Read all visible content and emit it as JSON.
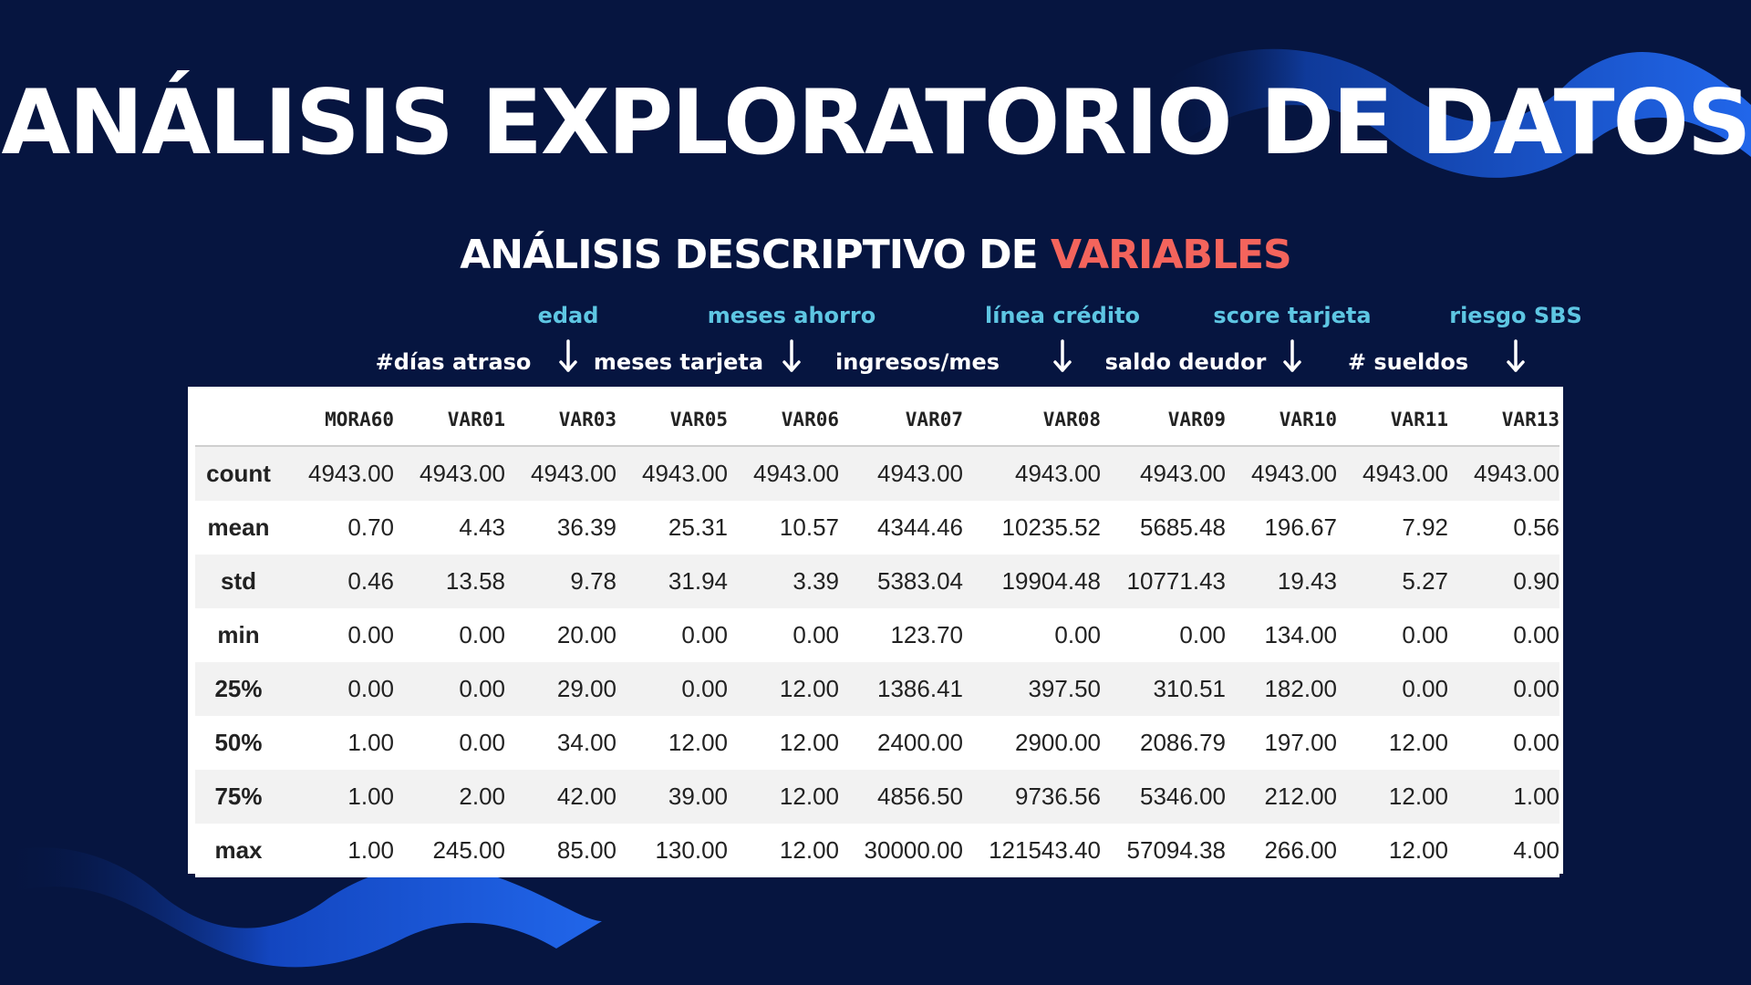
{
  "slide": {
    "title": "ANÁLISIS EXPLORATORIO DE DATOS",
    "subtitle": {
      "prefix": "ANÁLISIS DESCRIPTIVO DE ",
      "highlight": "VARIABLES"
    },
    "colors": {
      "background": "#061540",
      "wave": "#1f5fe0",
      "highlight": "#f4645c",
      "annotation_top": "#5ec6e3",
      "annotation_bottom": "#ffffff"
    }
  },
  "annotations": {
    "var01": "#días atraso",
    "var03": "edad",
    "var05": "meses tarjeta",
    "var06": "meses ahorro",
    "var07": "ingresos/mes",
    "var08": "línea crédito",
    "var09": "saldo deudor",
    "var10": "score tarjeta",
    "var11": "# sueldos",
    "var13": "riesgo SBS"
  },
  "table": {
    "columns": [
      "",
      "MORA60",
      "VAR01",
      "VAR03",
      "VAR05",
      "VAR06",
      "VAR07",
      "VAR08",
      "VAR09",
      "VAR10",
      "VAR11",
      "VAR13"
    ],
    "rows": [
      {
        "label": "count",
        "values": [
          "4943.00",
          "4943.00",
          "4943.00",
          "4943.00",
          "4943.00",
          "4943.00",
          "4943.00",
          "4943.00",
          "4943.00",
          "4943.00",
          "4943.00"
        ]
      },
      {
        "label": "mean",
        "values": [
          "0.70",
          "4.43",
          "36.39",
          "25.31",
          "10.57",
          "4344.46",
          "10235.52",
          "5685.48",
          "196.67",
          "7.92",
          "0.56"
        ]
      },
      {
        "label": "std",
        "values": [
          "0.46",
          "13.58",
          "9.78",
          "31.94",
          "3.39",
          "5383.04",
          "19904.48",
          "10771.43",
          "19.43",
          "5.27",
          "0.90"
        ]
      },
      {
        "label": "min",
        "values": [
          "0.00",
          "0.00",
          "20.00",
          "0.00",
          "0.00",
          "123.70",
          "0.00",
          "0.00",
          "134.00",
          "0.00",
          "0.00"
        ]
      },
      {
        "label": "25%",
        "values": [
          "0.00",
          "0.00",
          "29.00",
          "0.00",
          "12.00",
          "1386.41",
          "397.50",
          "310.51",
          "182.00",
          "0.00",
          "0.00"
        ]
      },
      {
        "label": "50%",
        "values": [
          "1.00",
          "0.00",
          "34.00",
          "12.00",
          "12.00",
          "2400.00",
          "2900.00",
          "2086.79",
          "197.00",
          "12.00",
          "0.00"
        ]
      },
      {
        "label": "75%",
        "values": [
          "1.00",
          "2.00",
          "42.00",
          "39.00",
          "12.00",
          "4856.50",
          "9736.56",
          "5346.00",
          "212.00",
          "12.00",
          "1.00"
        ]
      },
      {
        "label": "max",
        "values": [
          "1.00",
          "245.00",
          "85.00",
          "130.00",
          "12.00",
          "30000.00",
          "121543.40",
          "57094.38",
          "266.00",
          "12.00",
          "4.00"
        ]
      }
    ]
  },
  "icons": {
    "arrow": "down-arrow-icon",
    "decoration": "wave-decoration"
  }
}
